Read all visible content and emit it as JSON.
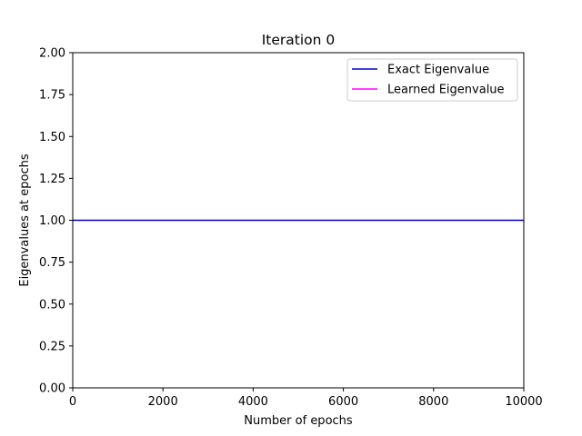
{
  "chart_data": {
    "type": "line",
    "title": "Iteration 0",
    "xlabel": "Number of epochs",
    "ylabel": "Eigenvalues at epochs",
    "xlim": [
      0,
      10000
    ],
    "ylim": [
      0,
      2
    ],
    "xticks": [
      0,
      2000,
      4000,
      6000,
      8000,
      10000
    ],
    "xtick_labels": [
      "0",
      "2000",
      "4000",
      "6000",
      "8000",
      "10000"
    ],
    "yticks": [
      0,
      0.25,
      0.5,
      0.75,
      1.0,
      1.25,
      1.5,
      1.75,
      2.0
    ],
    "ytick_labels": [
      "0.00",
      "0.25",
      "0.50",
      "0.75",
      "1.00",
      "1.25",
      "1.50",
      "1.75",
      "2.00"
    ],
    "grid": false,
    "legend_position": "top-right",
    "series": [
      {
        "name": "Exact Eigenvalue",
        "color": "#0000cc",
        "x": [
          0,
          10000
        ],
        "y": [
          1.0,
          1.0
        ]
      },
      {
        "name": "Learned Eigenvalue",
        "color": "#ff00ff",
        "x": [],
        "y": []
      }
    ]
  }
}
